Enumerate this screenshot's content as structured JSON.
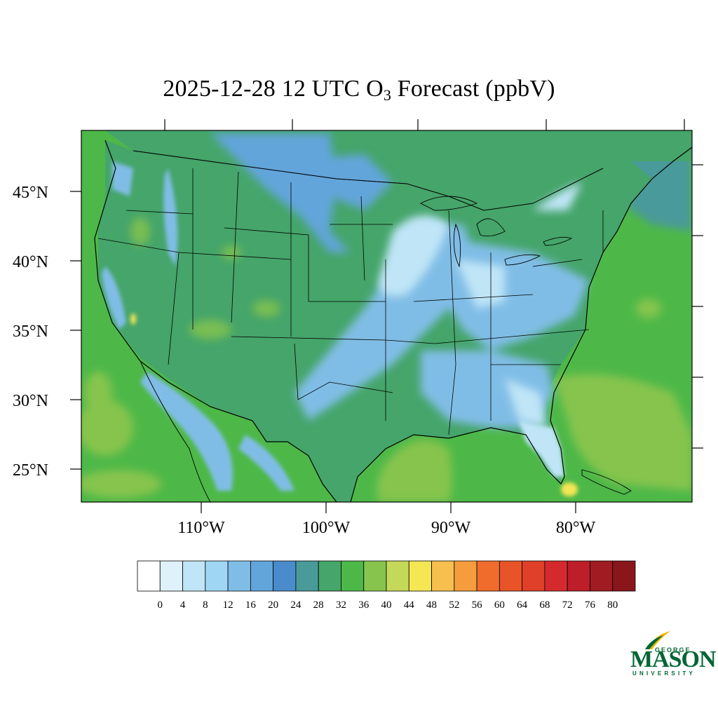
{
  "title": {
    "prefix": "2025-12-28 12 UTC O",
    "subscript": "3",
    "suffix": " Forecast (ppbV)"
  },
  "axes": {
    "lat_labels": [
      "45°N",
      "40°N",
      "35°N",
      "30°N",
      "25°N"
    ],
    "lon_labels": [
      "110°W",
      "100°W",
      "90°W",
      "80°W"
    ]
  },
  "colorbar": {
    "labels": [
      "0",
      "4",
      "8",
      "12",
      "16",
      "20",
      "24",
      "28",
      "32",
      "36",
      "40",
      "44",
      "48",
      "52",
      "56",
      "60",
      "64",
      "68",
      "72",
      "76",
      "80"
    ],
    "colors": [
      "#ffffff",
      "#dff1fa",
      "#bfe5f7",
      "#9fd6f3",
      "#80bde6",
      "#62a5da",
      "#4a8ccb",
      "#4a9a9a",
      "#45a56a",
      "#4db848",
      "#86c44d",
      "#c4d85a",
      "#f5e654",
      "#f7c04e",
      "#f59c3c",
      "#f06c2c",
      "#e85428",
      "#e0402a",
      "#d42a2e",
      "#bd1e2a",
      "#a01c22",
      "#8a161c"
    ]
  },
  "map": {
    "colors": {
      "ocean": "#4db848",
      "pacific_light": "#86c44d",
      "gulf": "#86c44d",
      "atlantic": "#4a9a9a",
      "land_base": "#45a56a",
      "plains": "#62a5da",
      "midwest": "#80bde6",
      "lakes": "#bfe5f7",
      "southeast": "#80bde6",
      "florida": "#bfe5f7",
      "yellow": "#f5e654"
    }
  },
  "logo": {
    "top": "GEORGE",
    "main": "MASON",
    "bottom": "UNIVERSITY"
  }
}
